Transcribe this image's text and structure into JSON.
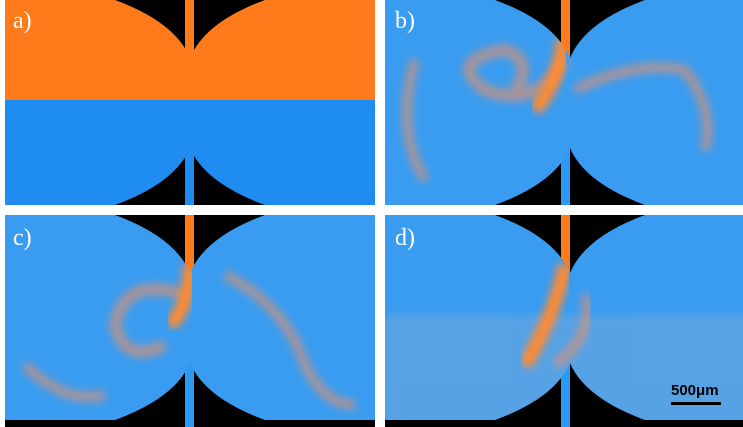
{
  "panels": [
    {
      "label": "a)"
    },
    {
      "label": "b)"
    },
    {
      "label": "c)"
    },
    {
      "label": "d)"
    }
  ],
  "scale_bar": {
    "label": "500μm"
  }
}
